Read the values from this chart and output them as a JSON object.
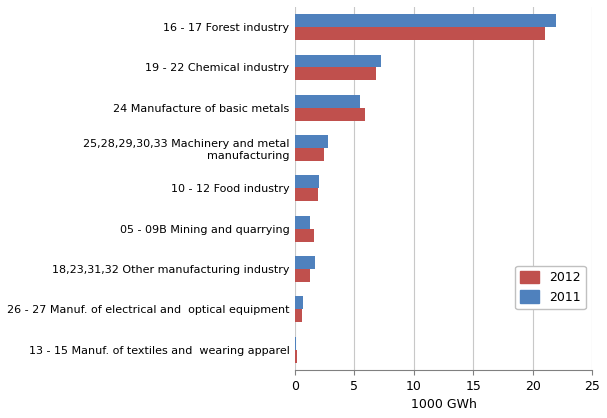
{
  "categories": [
    "16 - 17 Forest industry",
    "19 - 22 Chemical industry",
    "24 Manufacture of basic metals",
    "25,28,29,30,33 Machinery and metal\nmanufacturing",
    "10 - 12 Food industry",
    "05 - 09B Mining and quarrying",
    "18,23,31,32 Other manufacturing industry",
    "26 - 27 Manuf. of electrical and  optical equipment",
    "13 - 15 Manuf. of textiles and  wearing apparel"
  ],
  "values_2012": [
    21.0,
    6.8,
    5.9,
    2.4,
    1.9,
    1.6,
    1.3,
    0.6,
    0.18
  ],
  "values_2011": [
    22.0,
    7.2,
    5.5,
    2.8,
    2.0,
    1.3,
    1.7,
    0.7,
    0.1
  ],
  "color_2012": "#c0504d",
  "color_2011": "#4f81bd",
  "xlabel": "1000 GWh",
  "xlim": [
    0,
    25
  ],
  "xticks": [
    0,
    5,
    10,
    15,
    20,
    25
  ],
  "bar_height": 0.32,
  "background_color": "#ffffff",
  "legend_2012": "2012",
  "legend_2011": "2011",
  "label_fontsize": 8.0,
  "tick_fontsize": 9.0
}
